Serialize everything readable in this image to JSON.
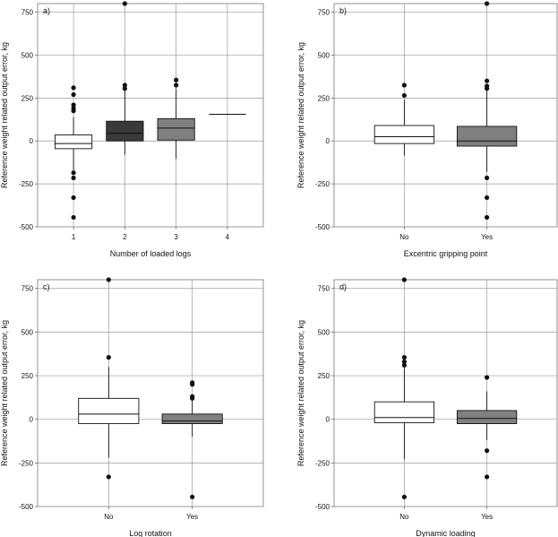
{
  "figure": {
    "background": "#ffffff"
  },
  "chart_data": [
    {
      "type": "box",
      "panel_label": "a)",
      "xlabel": "Number of loaded logs",
      "ylabel": "Reference weight related output error, kg",
      "ylim": [
        -500,
        800
      ],
      "yticks": [
        -500,
        -250,
        0,
        250,
        500,
        750
      ],
      "categories": [
        "1",
        "2",
        "3",
        "4"
      ],
      "boxes": [
        {
          "category": "1",
          "fill": "#ffffff",
          "whisker_low": -180,
          "q1": -45,
          "median": -15,
          "q3": 35,
          "whisker_high": 140,
          "outliers": [
            310,
            270,
            210,
            190,
            175,
            -185,
            -215,
            -330,
            -445
          ]
        },
        {
          "category": "2",
          "fill": "#3a3a3a",
          "whisker_low": -80,
          "q1": 0,
          "median": 45,
          "q3": 115,
          "whisker_high": 295,
          "outliers": [
            800,
            325,
            305
          ]
        },
        {
          "category": "3",
          "fill": "#808080",
          "whisker_low": -105,
          "q1": 5,
          "median": 75,
          "q3": 130,
          "whisker_high": 305,
          "outliers": [
            355,
            325
          ]
        },
        {
          "category": "4",
          "fill": "#ffffff",
          "whisker_low": 155,
          "q1": 155,
          "median": 155,
          "q3": 155,
          "whisker_high": 155,
          "outliers": []
        }
      ]
    },
    {
      "type": "box",
      "panel_label": "b)",
      "xlabel": "Excentric gripping point",
      "ylabel": "Reference weight related output error, kg",
      "ylim": [
        -500,
        800
      ],
      "yticks": [
        -500,
        -250,
        0,
        250,
        500,
        750
      ],
      "categories": [
        "No",
        "Yes"
      ],
      "boxes": [
        {
          "category": "No",
          "fill": "#ffffff",
          "whisker_low": -85,
          "q1": -15,
          "median": 25,
          "q3": 90,
          "whisker_high": 240,
          "outliers": [
            325,
            265
          ]
        },
        {
          "category": "Yes",
          "fill": "#808080",
          "whisker_low": -180,
          "q1": -30,
          "median": 0,
          "q3": 85,
          "whisker_high": 290,
          "outliers": [
            800,
            350,
            320,
            305,
            -215,
            -330,
            -445
          ]
        }
      ]
    },
    {
      "type": "box",
      "panel_label": "c)",
      "xlabel": "Log rotation",
      "ylabel": "Reference weight related output error, kg",
      "ylim": [
        -500,
        800
      ],
      "yticks": [
        -500,
        -250,
        0,
        250,
        500,
        750
      ],
      "categories": [
        "No",
        "Yes"
      ],
      "boxes": [
        {
          "category": "No",
          "fill": "#ffffff",
          "whisker_low": -220,
          "q1": -25,
          "median": 30,
          "q3": 120,
          "whisker_high": 300,
          "outliers": [
            800,
            355,
            -330
          ]
        },
        {
          "category": "Yes",
          "fill": "#808080",
          "whisker_low": -100,
          "q1": -25,
          "median": -10,
          "q3": 30,
          "whisker_high": 115,
          "outliers": [
            210,
            200,
            130,
            120,
            -445
          ]
        }
      ]
    },
    {
      "type": "box",
      "panel_label": "d)",
      "xlabel": "Dynamic loading",
      "ylabel": "Reference weight related output error, kg",
      "ylim": [
        -500,
        800
      ],
      "yticks": [
        -500,
        -250,
        0,
        250,
        500,
        750
      ],
      "categories": [
        "No",
        "Yes"
      ],
      "boxes": [
        {
          "category": "No",
          "fill": "#ffffff",
          "whisker_low": -230,
          "q1": -20,
          "median": 10,
          "q3": 100,
          "whisker_high": 295,
          "outliers": [
            800,
            355,
            330,
            310,
            -445
          ]
        },
        {
          "category": "Yes",
          "fill": "#808080",
          "whisker_low": -120,
          "q1": -25,
          "median": 5,
          "q3": 50,
          "whisker_high": 160,
          "outliers": [
            240,
            -180,
            -330
          ]
        }
      ]
    }
  ]
}
